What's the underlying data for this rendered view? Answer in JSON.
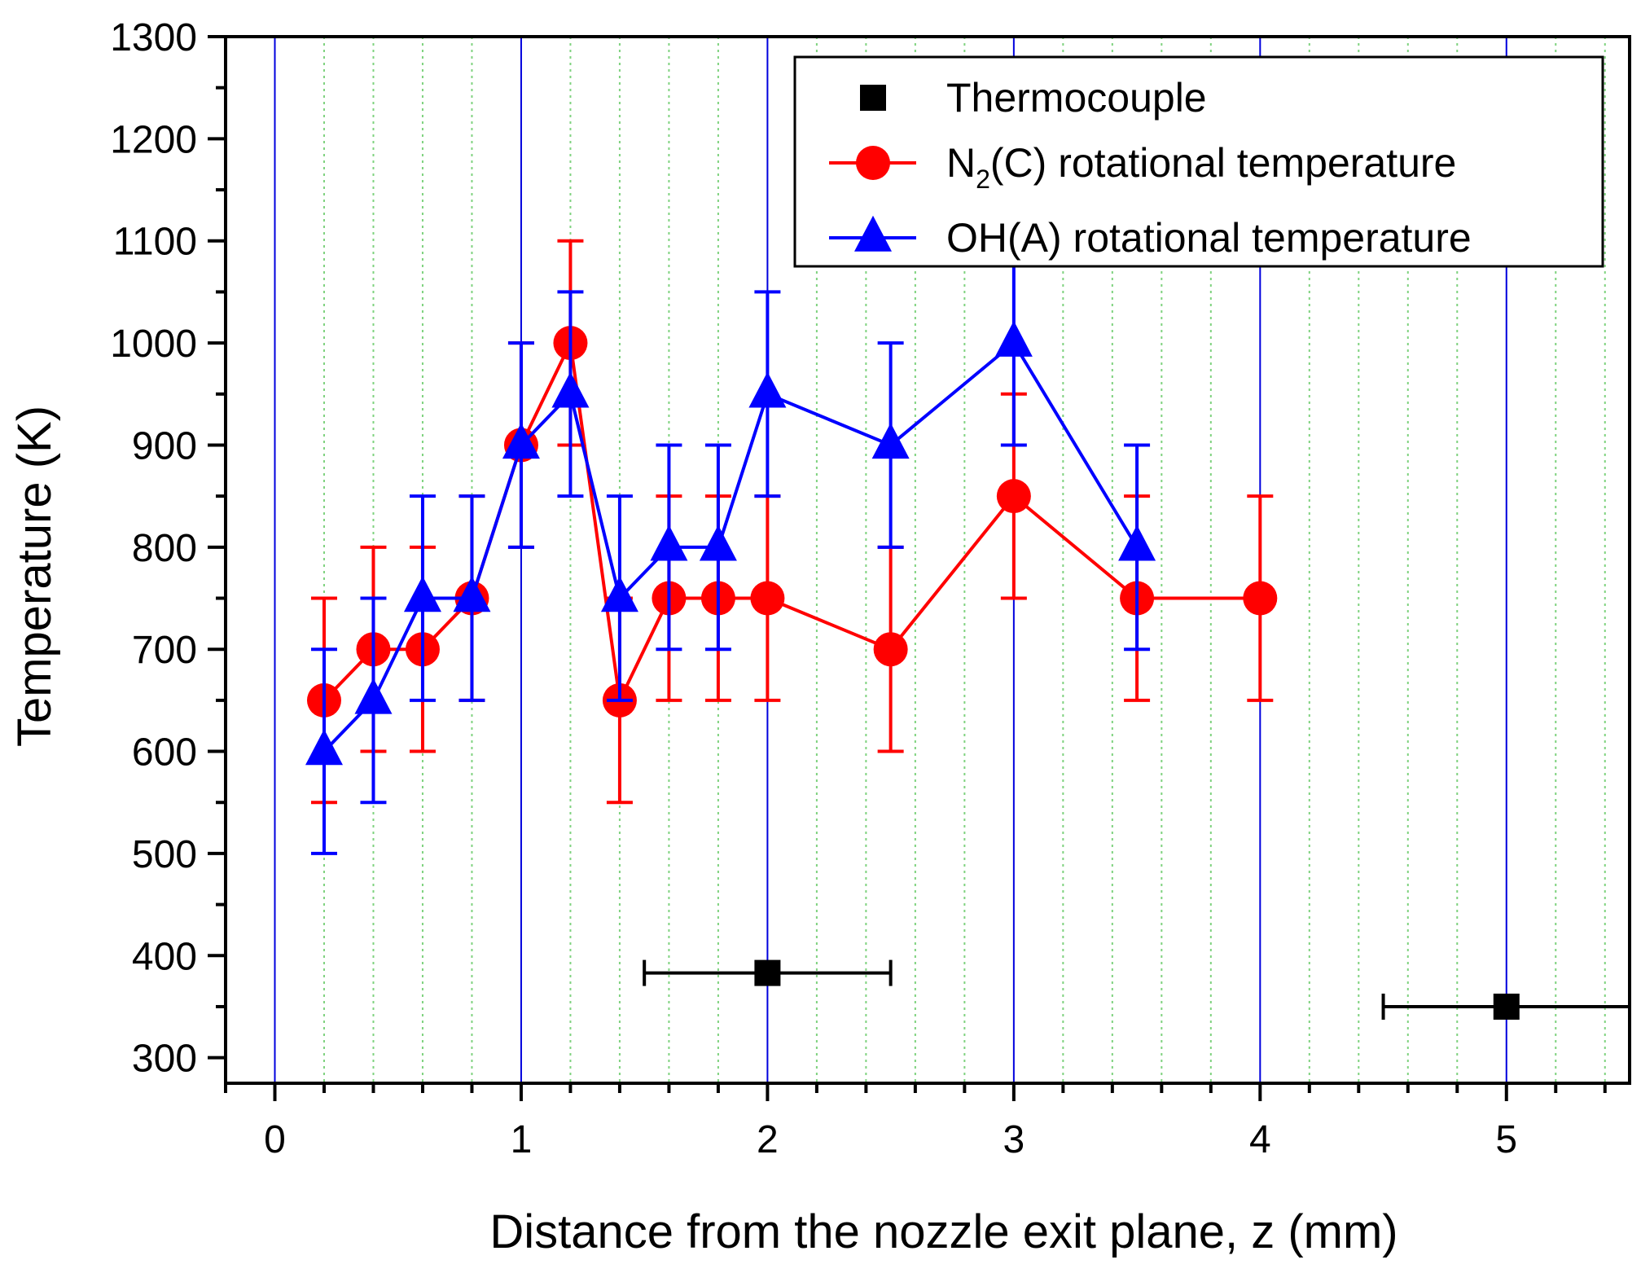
{
  "chart_data": {
    "type": "scatter",
    "title": "",
    "xlabel": "Distance from the nozzle exit plane, z (mm)",
    "ylabel": "Temperature (K)",
    "xlim": [
      -0.2,
      5.5
    ],
    "ylim": [
      275,
      1300
    ],
    "xticks": [
      0,
      1,
      2,
      3,
      4,
      5
    ],
    "xtick_labels": [
      "0",
      "1",
      "2",
      "3",
      "4",
      "5"
    ],
    "yticks": [
      300,
      400,
      500,
      600,
      700,
      800,
      900,
      1000,
      1100,
      1200,
      1300
    ],
    "ytick_labels": [
      "300",
      "400",
      "500",
      "600",
      "700",
      "800",
      "900",
      "1000",
      "1100",
      "1200",
      "1300"
    ],
    "grid": "major vertical blue, minor vertical dotted green",
    "legend_position": "top-right",
    "series": [
      {
        "name": "Thermocouple",
        "color": "#000000",
        "marker": "square",
        "line": false,
        "x": [
          2.0,
          5.0
        ],
        "y": [
          383,
          350
        ],
        "xerr": [
          0.5,
          0.5
        ],
        "yerr": [
          0,
          0
        ]
      },
      {
        "name": "N",
        "name_sub": "2",
        "name_rest": "(C) rotational temperature",
        "color": "#ff0000",
        "marker": "circle",
        "line": true,
        "x": [
          0.2,
          0.4,
          0.6,
          0.8,
          1.0,
          1.2,
          1.4,
          1.6,
          1.8,
          2.0,
          2.5,
          3.0,
          3.5,
          4.0
        ],
        "y": [
          650,
          700,
          700,
          750,
          900,
          1000,
          650,
          750,
          750,
          750,
          700,
          850,
          750,
          750
        ],
        "yerr": [
          100,
          100,
          100,
          100,
          100,
          100,
          100,
          100,
          100,
          100,
          100,
          100,
          100,
          100
        ]
      },
      {
        "name": "OH(A) rotational temperature",
        "color": "#0000ff",
        "marker": "triangle",
        "line": true,
        "x": [
          0.2,
          0.4,
          0.6,
          0.8,
          1.0,
          1.2,
          1.4,
          1.6,
          1.8,
          2.0,
          2.5,
          3.0,
          3.5
        ],
        "y": [
          600,
          650,
          750,
          750,
          900,
          950,
          750,
          800,
          800,
          950,
          900,
          1000,
          800
        ],
        "yerr": [
          100,
          100,
          100,
          100,
          100,
          100,
          100,
          100,
          100,
          100,
          100,
          100,
          100
        ]
      }
    ]
  }
}
